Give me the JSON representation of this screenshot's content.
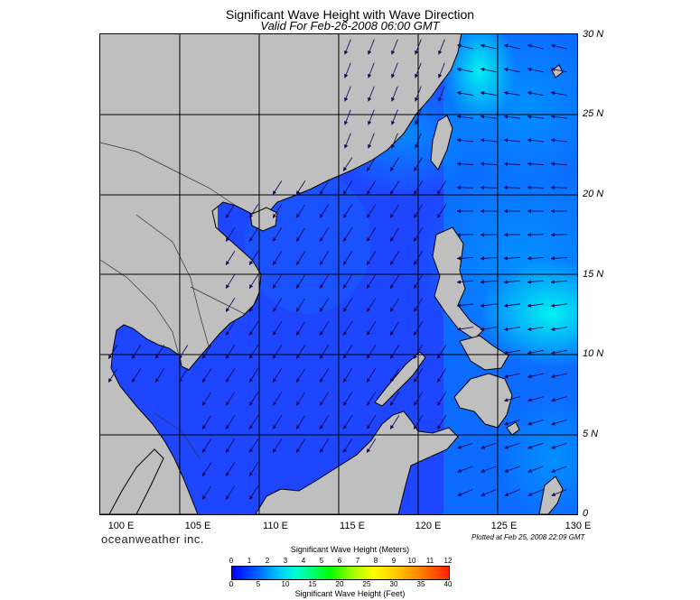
{
  "title": "Significant Wave Height with Wave Direction",
  "subtitle": "Valid For Feb-26-2008 06:00 GMT",
  "brand": "oceanweather inc.",
  "plotted": "Plotted at Feb 25, 2008 22:09 GMT",
  "lat_labels": [
    "30 N",
    "25 N",
    "20 N",
    "15 N",
    "10 N",
    "5 N",
    "0"
  ],
  "lon_labels": [
    "100 E",
    "105 E",
    "110 E",
    "115 E",
    "120 E",
    "125 E",
    "130 E"
  ],
  "colorbar": {
    "title_meters": "Significant Wave Height (Meters)",
    "title_feet": "Significant Wave Height (Feet)",
    "ticks_meters": [
      "0",
      "1",
      "2",
      "3",
      "4",
      "5",
      "6",
      "7",
      "8",
      "9",
      "10",
      "11",
      "12"
    ],
    "ticks_feet": [
      "0",
      "5",
      "10",
      "15",
      "20",
      "25",
      "30",
      "35",
      "40"
    ]
  },
  "colors": {
    "land": "#bfbfbf",
    "sea_low": "#0000ff",
    "sea_mid": "#0077ff",
    "sea_high": "#00ddff"
  }
}
